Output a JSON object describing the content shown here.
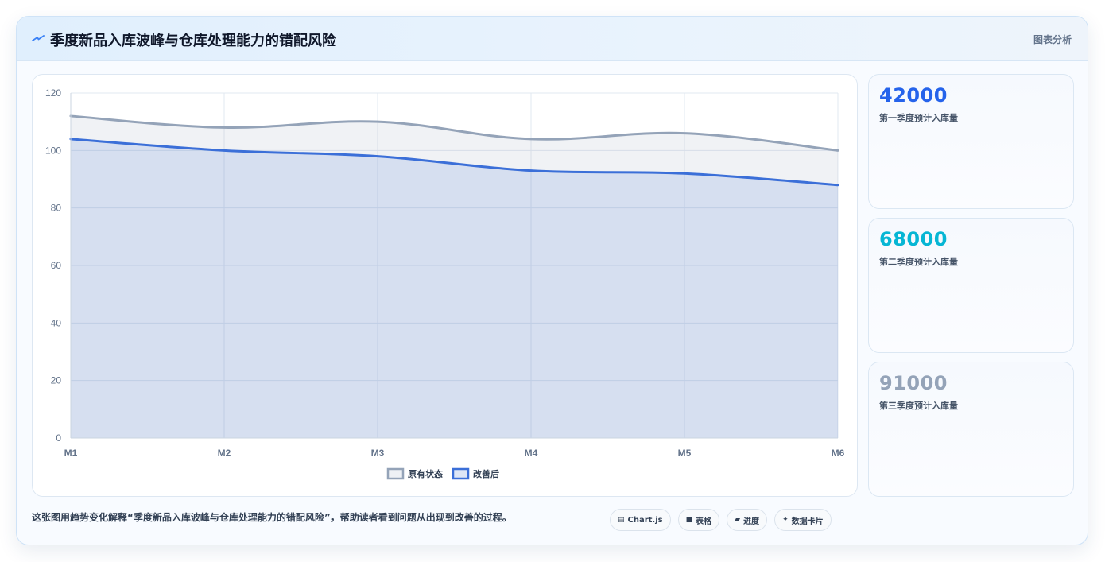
{
  "header": {
    "icon": "trend-bolt-icon",
    "title": "季度新品入库波峰与仓库处理能力的错配风险",
    "tag": "图表分析"
  },
  "chart_data": {
    "type": "line",
    "title": "",
    "xlabel": "",
    "ylabel": "",
    "categories": [
      "M1",
      "M2",
      "M3",
      "M4",
      "M5",
      "M6"
    ],
    "ylim": [
      0,
      120
    ],
    "yticks": [
      "0",
      "20",
      "40",
      "60",
      "80",
      "100",
      "120"
    ],
    "grid": true,
    "legend_position": "bottom",
    "series": [
      {
        "name": "原有状态",
        "values": [
          112,
          108,
          110,
          104,
          106,
          100
        ],
        "color": "#94a3b8",
        "fill": "area"
      },
      {
        "name": "改善后",
        "values": [
          104,
          100,
          98,
          93,
          92,
          88
        ],
        "color": "#3b6fd8",
        "fill": "area"
      }
    ]
  },
  "stats": [
    {
      "value": "42000",
      "label": "第一季度预计入库量",
      "color": "#2563eb"
    },
    {
      "value": "68000",
      "label": "第二季度预计入库量",
      "color": "#06b6d4"
    },
    {
      "value": "91000",
      "label": "第三季度预计入库量",
      "color": "#94a3b8"
    }
  ],
  "caption": "这张图用趋势变化解释“季度新品入库波峰与仓库处理能力的错配风险”，帮助读者看到问题从出现到改善的过程。",
  "chips": [
    {
      "icon": "chart-icon",
      "glyph": "▤",
      "label": "Chart.js"
    },
    {
      "icon": "table-icon",
      "glyph": "■",
      "label": "表格"
    },
    {
      "icon": "progress-icon",
      "glyph": "▰",
      "label": "进度"
    },
    {
      "icon": "card-icon",
      "glyph": "✦",
      "label": "数据卡片"
    }
  ]
}
